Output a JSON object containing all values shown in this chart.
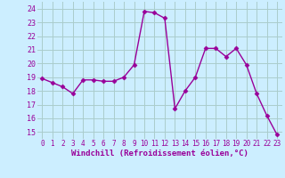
{
  "x": [
    0,
    1,
    2,
    3,
    4,
    5,
    6,
    7,
    8,
    9,
    10,
    11,
    12,
    13,
    14,
    15,
    16,
    17,
    18,
    19,
    20,
    21,
    22,
    23
  ],
  "y": [
    18.9,
    18.6,
    18.3,
    17.8,
    18.8,
    18.8,
    18.7,
    18.7,
    19.0,
    19.9,
    23.8,
    23.7,
    23.3,
    16.7,
    18.0,
    19.0,
    21.1,
    21.1,
    20.5,
    21.1,
    19.9,
    17.8,
    16.2,
    14.8
  ],
  "line_color": "#990099",
  "marker": "D",
  "markersize": 2.5,
  "linewidth": 1.0,
  "bg_color": "#cceeff",
  "grid_color": "#aacccc",
  "xlabel": "Windchill (Refroidissement éolien,°C)",
  "xlabel_color": "#990099",
  "xlabel_fontsize": 6.5,
  "ytick_labels": [
    "15",
    "16",
    "17",
    "18",
    "19",
    "20",
    "21",
    "22",
    "23",
    "24"
  ],
  "ytick_values": [
    15,
    16,
    17,
    18,
    19,
    20,
    21,
    22,
    23,
    24
  ],
  "ylim": [
    14.5,
    24.5
  ],
  "xlim": [
    -0.5,
    23.5
  ],
  "xtick_fontsize": 5.5,
  "ytick_fontsize": 6.0,
  "tick_color": "#990099"
}
